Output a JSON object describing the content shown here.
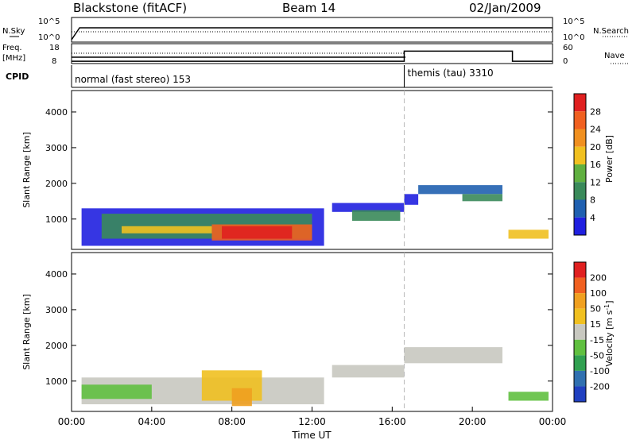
{
  "header": {
    "station": "Blackstone (fitACF)",
    "beam": "Beam 14",
    "date": "02/Jan/2009"
  },
  "top_panels": {
    "nsky": {
      "label": "N.Sky",
      "left_ticks": [
        "10^5",
        "10^0"
      ],
      "right_ticks": [
        "10^5",
        "10^0"
      ],
      "right_label": "N.Search"
    },
    "freq": {
      "label": "Freq.",
      "unit": "[MHz]",
      "left_ticks": [
        "18",
        "8"
      ],
      "right_ticks": [
        "60",
        "0"
      ],
      "right_label": "Nave",
      "nave_steps": [
        {
          "start_hour": 0,
          "end_hour": 16.6,
          "value": 5
        },
        {
          "start_hour": 16.6,
          "end_hour": 22.0,
          "value": 40
        },
        {
          "start_hour": 22.0,
          "end_hour": 24.0,
          "value": 5
        }
      ]
    },
    "cpid": {
      "label": "CPID",
      "modes": [
        {
          "text": "normal (fast stereo) 153",
          "start_hour": 0
        },
        {
          "text": "themis (tau) 3310",
          "start_hour": 16.6
        }
      ]
    }
  },
  "colorbars": {
    "power": {
      "title": "Power [dB]",
      "ticks": [
        "28",
        "24",
        "20",
        "16",
        "12",
        "8",
        "4"
      ],
      "colors": [
        "#2020e0",
        "#2060b0",
        "#3a8a5a",
        "#60b040",
        "#f0c020",
        "#f09020",
        "#f06020",
        "#e02020"
      ]
    },
    "velocity": {
      "title": "Velocity [m s",
      "title_sup": "-1",
      "title_end": "]",
      "ticks": [
        "200",
        "100",
        "50",
        "15",
        "-15",
        "-50",
        "-100",
        "-200"
      ],
      "colors": [
        "#2040c0",
        "#3070b0",
        "#30a050",
        "#60c040",
        "#c8c8c0",
        "#f0c020",
        "#f0a020",
        "#f06020",
        "#e02020"
      ]
    }
  },
  "chart_data": [
    {
      "type": "heatmap",
      "title": "Power",
      "ylabel": "Slant Range [km]",
      "ylim": [
        150,
        4600
      ],
      "xlim": [
        0,
        24
      ],
      "yticks": [
        "1000",
        "2000",
        "3000",
        "4000"
      ],
      "yticks_values": [
        1000,
        2000,
        3000,
        4000
      ],
      "regions": [
        {
          "t0": 0.5,
          "t1": 12.6,
          "r0": 250,
          "r1": 1300,
          "color": "#2020e0"
        },
        {
          "t0": 1.5,
          "t1": 12.0,
          "r0": 450,
          "r1": 1150,
          "color": "#3a8a5a"
        },
        {
          "t0": 2.5,
          "t1": 7.0,
          "r0": 600,
          "r1": 800,
          "color": "#f0c020"
        },
        {
          "t0": 7.0,
          "t1": 12.0,
          "r0": 400,
          "r1": 850,
          "color": "#f06020"
        },
        {
          "t0": 7.5,
          "t1": 11.0,
          "r0": 450,
          "r1": 800,
          "color": "#e02020"
        },
        {
          "t0": 13.0,
          "t1": 16.6,
          "r0": 1200,
          "r1": 1450,
          "color": "#2020e0"
        },
        {
          "t0": 14.0,
          "t1": 16.4,
          "r0": 950,
          "r1": 1250,
          "color": "#3a8a5a"
        },
        {
          "t0": 16.6,
          "t1": 17.3,
          "r0": 1400,
          "r1": 1700,
          "color": "#2020e0"
        },
        {
          "t0": 17.3,
          "t1": 21.5,
          "r0": 1700,
          "r1": 1950,
          "color": "#2060b0"
        },
        {
          "t0": 19.5,
          "t1": 21.5,
          "r0": 1500,
          "r1": 1700,
          "color": "#3a8a5a"
        },
        {
          "t0": 21.8,
          "t1": 23.8,
          "r0": 450,
          "r1": 700,
          "color": "#f0c020"
        }
      ]
    },
    {
      "type": "heatmap",
      "title": "Velocity",
      "ylabel": "Slant Range [km]",
      "ylim": [
        150,
        4600
      ],
      "xlim": [
        0,
        24
      ],
      "xlabel": "Time UT",
      "xticks": [
        "00:00",
        "04:00",
        "08:00",
        "12:00",
        "16:00",
        "20:00",
        "00:00"
      ],
      "xticks_values": [
        0,
        4,
        8,
        12,
        16,
        20,
        24
      ],
      "yticks": [
        "1000",
        "2000",
        "3000",
        "4000"
      ],
      "yticks_values": [
        1000,
        2000,
        3000,
        4000
      ],
      "regions": [
        {
          "t0": 0.5,
          "t1": 12.6,
          "r0": 350,
          "r1": 1100,
          "color": "#c8c8c0"
        },
        {
          "t0": 0.5,
          "t1": 4.0,
          "r0": 500,
          "r1": 900,
          "color": "#60c040"
        },
        {
          "t0": 6.5,
          "t1": 9.5,
          "r0": 450,
          "r1": 1300,
          "color": "#f0c020"
        },
        {
          "t0": 8.0,
          "t1": 9.0,
          "r0": 300,
          "r1": 800,
          "color": "#f0a020"
        },
        {
          "t0": 13.0,
          "t1": 16.6,
          "r0": 1100,
          "r1": 1450,
          "color": "#c8c8c0"
        },
        {
          "t0": 16.6,
          "t1": 21.5,
          "r0": 1500,
          "r1": 1950,
          "color": "#c8c8c0"
        },
        {
          "t0": 21.8,
          "t1": 23.8,
          "r0": 450,
          "r1": 700,
          "color": "#60c040"
        }
      ]
    }
  ]
}
